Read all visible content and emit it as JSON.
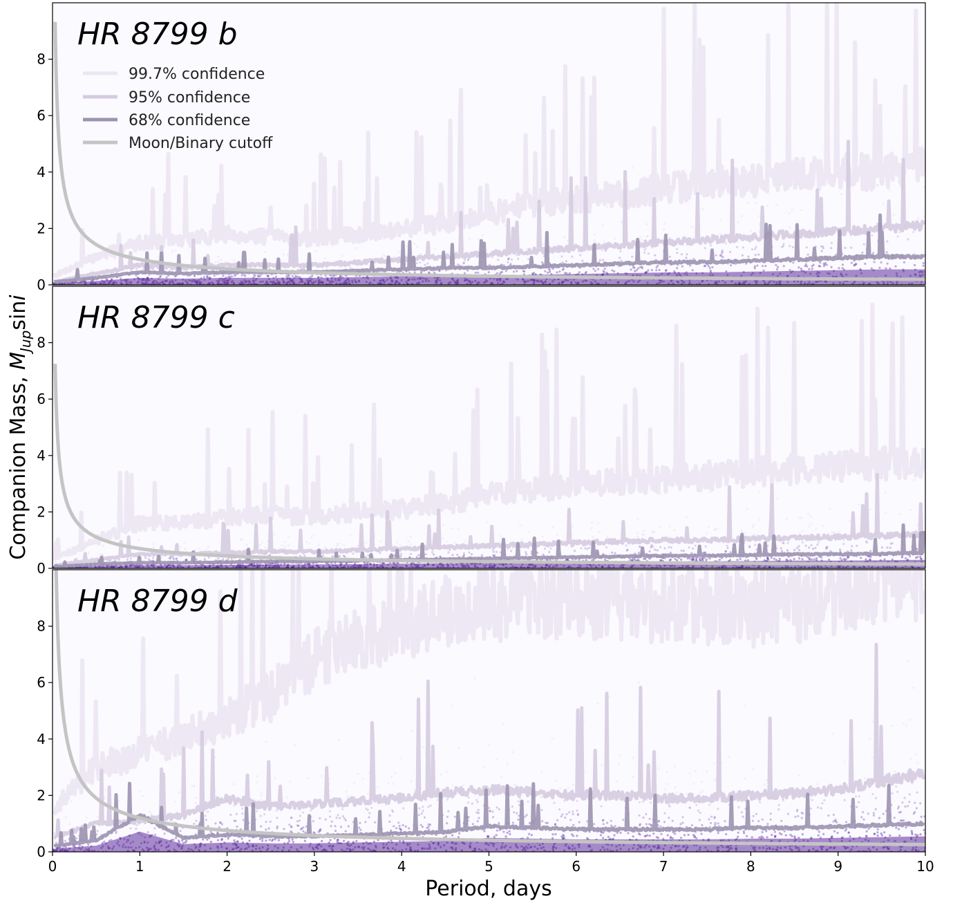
{
  "chart_data": {
    "type": "line",
    "xlabel": "Period, days",
    "ylabel": "Companion Mass, ",
    "ylabel_math": "M",
    "ylabel_sub": "Jup",
    "ylabel_tail": "sin",
    "ylabel_i": "i",
    "xlim": [
      0,
      10
    ],
    "ylim": [
      0,
      10
    ],
    "x_ticks": [
      "0",
      "1",
      "2",
      "3",
      "4",
      "5",
      "6",
      "7",
      "8",
      "9",
      "10"
    ],
    "y_ticks": [
      "0",
      "2",
      "4",
      "6",
      "8"
    ],
    "grid": false,
    "legend_position": "top-left",
    "legend": [
      {
        "label": "99.7% confidence",
        "color": "#ebe6f2"
      },
      {
        "label": "95% confidence",
        "color": "#d5cbe0"
      },
      {
        "label": "68% confidence",
        "color": "#9c93b0"
      },
      {
        "label": "Moon/Binary cutoff",
        "color": "#c4c4c4"
      }
    ],
    "colors": {
      "background": "#fbfaff",
      "scatter": "#5e2d9c",
      "c997": "#ebe6f2",
      "c95": "#d5cbe0",
      "c68": "#9c93b0",
      "cutoff": "#c4c4c4"
    },
    "panels": [
      {
        "title": "HR 8799 b",
        "x": [
          0,
          0.5,
          1,
          1.5,
          2,
          2.5,
          3,
          3.5,
          4,
          4.5,
          5,
          5.5,
          6,
          6.5,
          7,
          7.5,
          8,
          8.5,
          9,
          9.5,
          10
        ],
        "c997": [
          0.3,
          1.0,
          1.5,
          1.6,
          1.8,
          1.7,
          1.6,
          1.8,
          2.0,
          2.2,
          2.5,
          2.9,
          3.0,
          3.2,
          3.4,
          3.6,
          3.7,
          3.9,
          4.0,
          4.0,
          4.2
        ],
        "c95": [
          0.1,
          0.4,
          0.7,
          0.6,
          0.7,
          0.7,
          0.7,
          0.8,
          0.9,
          1.0,
          1.1,
          1.2,
          1.3,
          1.4,
          1.5,
          1.6,
          1.7,
          1.8,
          1.9,
          2.0,
          2.1
        ],
        "c68": [
          0.1,
          0.25,
          0.45,
          0.4,
          0.45,
          0.45,
          0.45,
          0.5,
          0.55,
          0.6,
          0.6,
          0.65,
          0.7,
          0.75,
          0.8,
          0.8,
          0.85,
          0.9,
          0.95,
          1.0,
          1.0
        ],
        "cutoff_A": 0.9
      },
      {
        "title": "HR 8799 c",
        "x": [
          0,
          0.5,
          1,
          1.5,
          2,
          2.5,
          3,
          3.5,
          4,
          4.5,
          5,
          5.5,
          6,
          6.5,
          7,
          7.5,
          8,
          8.5,
          9,
          9.5,
          10
        ],
        "c997": [
          0.3,
          1.0,
          1.6,
          1.6,
          1.8,
          1.9,
          1.8,
          2.0,
          2.1,
          2.3,
          2.6,
          2.8,
          3.0,
          3.1,
          3.2,
          3.3,
          3.4,
          3.5,
          3.6,
          3.7,
          3.8
        ],
        "c95": [
          0.1,
          0.3,
          0.5,
          0.5,
          0.55,
          0.6,
          0.6,
          0.65,
          0.7,
          0.75,
          0.8,
          0.85,
          0.9,
          0.95,
          1.0,
          1.0,
          1.05,
          1.1,
          1.1,
          1.15,
          1.2
        ],
        "c68": [
          0.05,
          0.15,
          0.2,
          0.2,
          0.22,
          0.24,
          0.25,
          0.27,
          0.3,
          0.32,
          0.35,
          0.37,
          0.4,
          0.42,
          0.45,
          0.45,
          0.47,
          0.5,
          0.5,
          0.52,
          0.55
        ],
        "cutoff_A": 0.7
      },
      {
        "title": "HR 8799 d",
        "x": [
          0,
          0.5,
          1,
          1.5,
          2,
          2.5,
          3,
          3.5,
          4,
          4.5,
          5,
          5.5,
          6,
          6.5,
          7,
          7.5,
          8,
          8.5,
          9,
          9.5,
          10
        ],
        "c997": [
          1.5,
          3.0,
          3.5,
          4.0,
          4.8,
          5.5,
          6.8,
          7.5,
          8.0,
          8.5,
          8.8,
          9.0,
          9.0,
          8.9,
          8.7,
          8.6,
          8.6,
          8.8,
          9.2,
          9.6,
          9.8
        ],
        "c95": [
          0.5,
          1.0,
          1.1,
          1.3,
          1.9,
          1.6,
          1.7,
          1.8,
          1.9,
          2.1,
          2.2,
          2.1,
          2.0,
          2.0,
          1.9,
          1.9,
          2.0,
          2.1,
          2.2,
          2.5,
          2.8
        ],
        "c68": [
          0.2,
          0.4,
          1.3,
          0.5,
          0.6,
          0.55,
          0.55,
          0.6,
          0.65,
          0.7,
          0.9,
          0.85,
          0.8,
          0.8,
          0.8,
          0.8,
          0.85,
          0.85,
          0.9,
          0.95,
          1.0
        ],
        "cutoff_A": 1.2
      }
    ]
  }
}
